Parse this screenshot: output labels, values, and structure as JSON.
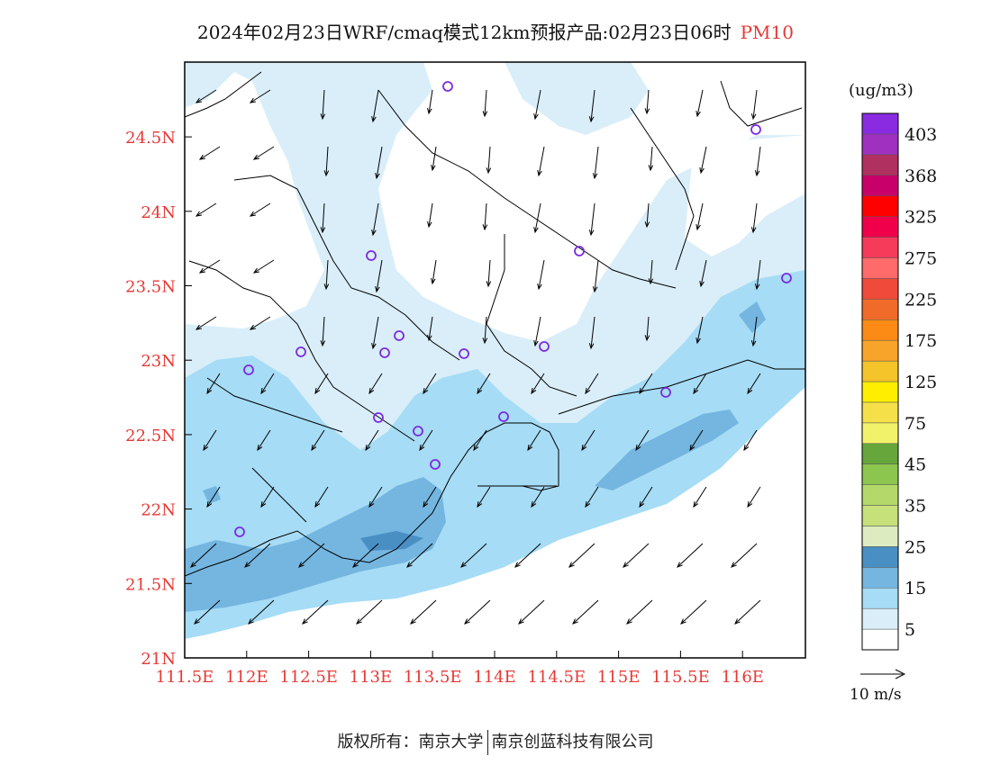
{
  "title": {
    "main": "2024年02月23日WRF/cmaq模式12km预报产品:02月23日06时",
    "product": "PM10"
  },
  "axes": {
    "x_ticks": [
      "111.5E",
      "112E",
      "112.5E",
      "113E",
      "113.5E",
      "114E",
      "114.5E",
      "115E",
      "115.5E",
      "116E"
    ],
    "y_ticks": [
      "21N",
      "21.5N",
      "22N",
      "22.5N",
      "23N",
      "23.5N",
      "24N",
      "24.5N"
    ],
    "tick_color": "#e53935"
  },
  "colorbar": {
    "unit": "(ug/m3)",
    "colors": [
      "#ffffff",
      "#d9eef9",
      "#a6dcf5",
      "#74b6e0",
      "#4a8fc4",
      "#dcecc0",
      "#c6e07a",
      "#b4d96a",
      "#8dc64e",
      "#66a63a",
      "#f2f26a",
      "#f5e04a",
      "#ffee00",
      "#f5c32a",
      "#f8a42a",
      "#fb8b15",
      "#f06a2a",
      "#f04a3a",
      "#ff6a6a",
      "#f53a5a",
      "#f0004a",
      "#ff0000",
      "#c8006a",
      "#b03060",
      "#a030c0",
      "#8a2be2"
    ],
    "labels": [
      "5",
      "15",
      "25",
      "35",
      "45",
      "75",
      "125",
      "175",
      "225",
      "275",
      "325",
      "368",
      "403"
    ]
  },
  "reference_vector": {
    "label": "10 m/s"
  },
  "footer": {
    "left": "版权所有：南京大学",
    "right": "南京创蓝科技有限公司"
  }
}
